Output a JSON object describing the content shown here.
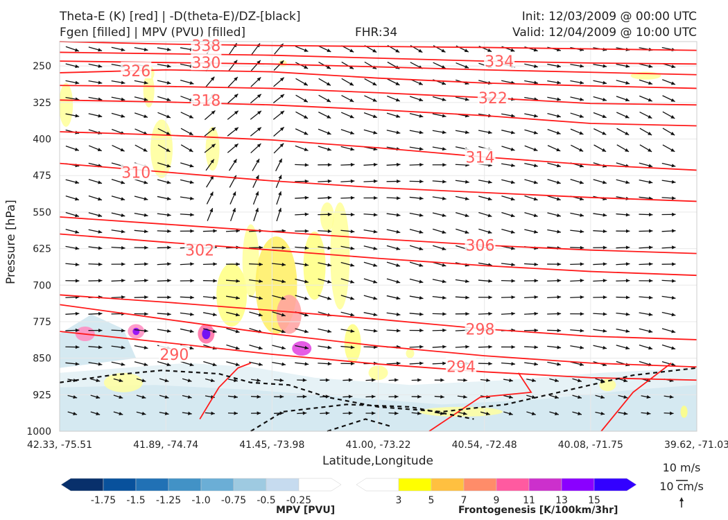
{
  "header": {
    "title_left_1": "Theta-E (K) [red] | -D(theta-E)/DZ-[black]",
    "title_left_2": "Fgen [filled] | MPV (PVU) [filled]",
    "fhr": "FHR:34",
    "init": "Init: 12/03/2009 @ 00:00 UTC",
    "valid": "Valid: 12/04/2009 @ 10:00 UTC"
  },
  "chart_data": {
    "type": "cross-section",
    "xlabel": "Latitude,Longitude",
    "ylabel": "Pressure [hPa]",
    "x_ticks": [
      "42.33, -75.51",
      "41.89, -74.74",
      "41.45, -73.98",
      "41.00, -73.22",
      "40.54, -72.48",
      "40.08, -71.75",
      "39.62, -71.03"
    ],
    "y_ticks": [
      250,
      325,
      400,
      475,
      550,
      625,
      700,
      775,
      850,
      925,
      1000
    ],
    "ylim": [
      1000,
      200
    ],
    "grid": true,
    "theta_e_contours": [
      {
        "label": "338",
        "y": [
          200,
          205,
          208,
          210,
          212,
          215,
          218
        ]
      },
      {
        "label": "334",
        "y": [
          222,
          225,
          228,
          234,
          240,
          244,
          246
        ]
      },
      {
        "label": "330",
        "y": [
          240,
          243,
          246,
          252,
          258,
          263,
          268
        ]
      },
      {
        "label": "326",
        "y": [
          264,
          258,
          262,
          275,
          285,
          291,
          296
        ]
      },
      {
        "label": "322",
        "y": [
          290,
          292,
          296,
          305,
          315,
          327,
          330
        ]
      },
      {
        "label": "318",
        "y": [
          320,
          324,
          330,
          340,
          352,
          368,
          373
        ]
      },
      {
        "label": "314",
        "y": [
          385,
          392,
          402,
          418,
          437,
          453,
          464
        ]
      },
      {
        "label": "310",
        "y": [
          450,
          468,
          486,
          500,
          510,
          520,
          528
        ]
      },
      {
        "label": "306",
        "y": [
          560,
          575,
          590,
          605,
          618,
          628,
          635
        ]
      },
      {
        "label": "302",
        "y": [
          595,
          612,
          628,
          645,
          660,
          672,
          680
        ]
      },
      {
        "label": "298",
        "y": [
          720,
          735,
          752,
          770,
          790,
          805,
          812
        ]
      },
      {
        "label": "294",
        "y": [
          740,
          770,
          800,
          825,
          845,
          860,
          868
        ]
      },
      {
        "label": "290",
        "y": [
          795,
          818,
          842,
          862,
          878,
          890,
          895
        ]
      }
    ],
    "theta_e_labels": [
      {
        "text": "338",
        "x": 0.23,
        "p": 208
      },
      {
        "text": "330",
        "x": 0.23,
        "p": 243
      },
      {
        "text": "326",
        "x": 0.12,
        "p": 260
      },
      {
        "text": "334",
        "x": 0.69,
        "p": 240
      },
      {
        "text": "318",
        "x": 0.23,
        "p": 320
      },
      {
        "text": "322",
        "x": 0.68,
        "p": 315
      },
      {
        "text": "314",
        "x": 0.66,
        "p": 437
      },
      {
        "text": "310",
        "x": 0.12,
        "p": 468
      },
      {
        "text": "302",
        "x": 0.22,
        "p": 628
      },
      {
        "text": "306",
        "x": 0.66,
        "p": 618
      },
      {
        "text": "298",
        "x": 0.66,
        "p": 790
      },
      {
        "text": "290",
        "x": 0.18,
        "p": 842
      },
      {
        "text": "294",
        "x": 0.63,
        "p": 867
      }
    ],
    "colorbar_mpv": {
      "title": "MPV [PVU]",
      "ticks": [
        "-1.75",
        "-1.5",
        "-1.25",
        "-1.0",
        "-0.75",
        "-0.5",
        "-0.25"
      ],
      "colors": [
        "#08306b",
        "#08519c",
        "#2171b5",
        "#4292c6",
        "#6baed6",
        "#9ecae1",
        "#c6dbef",
        "#ffffff"
      ]
    },
    "colorbar_fgen": {
      "title": "Frontogenesis [K/100km/3hr]",
      "ticks": [
        "3",
        "5",
        "7",
        "9",
        "11",
        "13",
        "15"
      ],
      "colors": [
        "#ffffff",
        "#ffff00",
        "#ffc040",
        "#ff8c69",
        "#ff5aa0",
        "#cc30cc",
        "#8a00ff",
        "#3300ff"
      ]
    },
    "vector_key": {
      "top": "10 m/s",
      "bottom": "10 cm/s"
    }
  }
}
